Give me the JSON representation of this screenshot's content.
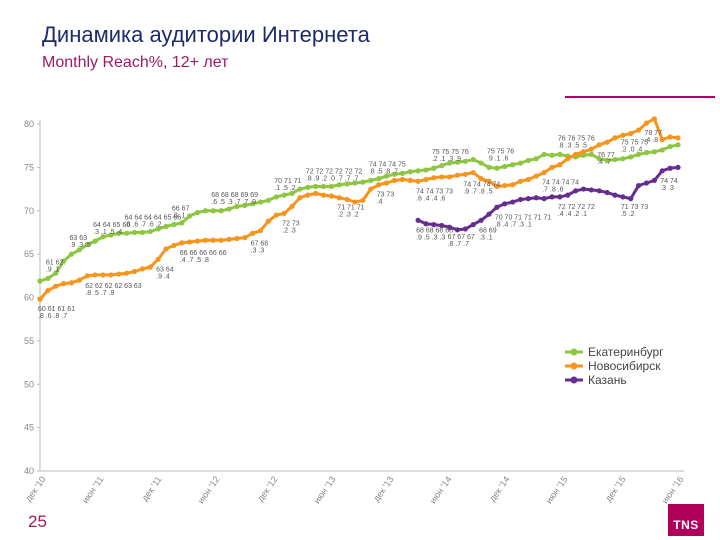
{
  "title": "Динамика аудитории Интернета",
  "subtitle": "Monthly Reach%, 12+ лет",
  "page_number": "25",
  "logo": "TNS",
  "chart_data": {
    "type": "line",
    "ylim": [
      40,
      80
    ],
    "y_ticks": [
      "40",
      "45",
      "50",
      "55",
      "60",
      "65",
      "70",
      "75",
      "80"
    ],
    "x_ticks": [
      "дек '10",
      "июн '11",
      "дек '11",
      "июн '12",
      "дек '12",
      "июн '13",
      "дек '13",
      "июн '14",
      "дек '14",
      "июн '15",
      "дек '15",
      "июн '16"
    ],
    "grid": false,
    "legend_position": "right",
    "series": [
      {
        "name": "Екатеринбург",
        "color": "#8dc63f",
        "start": 0,
        "values": [
          61.9,
          62.2,
          62.8,
          64.2,
          65.0,
          65.5,
          66.1,
          66.5,
          67.0,
          67.2,
          67.4,
          67.4,
          67.5,
          67.5,
          67.6,
          67.9,
          68.2,
          68.4,
          68.6,
          69.4,
          69.8,
          70.0,
          70.0,
          70.0,
          70.2,
          70.5,
          70.6,
          70.8,
          71.0,
          71.2,
          71.6,
          71.8,
          72.0,
          72.5,
          72.7,
          72.8,
          72.8,
          72.8,
          73.0,
          73.1,
          73.2,
          73.3,
          73.5,
          73.7,
          74.0,
          74.2,
          74.3,
          74.5,
          74.6,
          74.7,
          74.9,
          75.2,
          75.5,
          75.6,
          75.7,
          75.9,
          75.5,
          75.0,
          74.9,
          75.1,
          75.3,
          75.5,
          75.8,
          76.0,
          76.5,
          76.4,
          76.5,
          76.3,
          76.2,
          76.4,
          76.5,
          76.0,
          75.8,
          75.9,
          76.0,
          76.2,
          76.5,
          76.7,
          76.8,
          77.0,
          77.4,
          77.6
        ],
        "labels": [
          {
            "i": 1,
            "text": "61 62.\n.9 .1"
          },
          {
            "i": 4,
            "text": "63 63\n.9 .3 .5"
          },
          {
            "i": 7,
            "text": "64 64 65 66\n.3 .1 .5 .4"
          },
          {
            "i": 11,
            "text": "64 64 64 64 65 66\n.8 .6 .7 .6 .2"
          },
          {
            "i": 17,
            "text": "66 67\n.8 .1"
          },
          {
            "i": 22,
            "text": "68 68 68 69 69\n.6 .5 .3 .7 .7 .9"
          },
          {
            "i": 30,
            "text": "70 71 71\n.1 .5 .2"
          },
          {
            "i": 34,
            "text": "72 72 72 72 72 72\n.8 .9 .2 .0 .7 .7 .7"
          },
          {
            "i": 42,
            "text": "74 74 74 75\n.8 .5 .8 .7"
          },
          {
            "i": 50,
            "text": "75 75 75 76\n.2 .1 .3 .9"
          },
          {
            "i": 57,
            "text": "75 75 76\n.9 .1 .6"
          },
          {
            "i": 66,
            "text": "76 76 75 76\n.8 .3 .5 .5"
          },
          {
            "i": 74,
            "text": "75 75 75\n.2 .0 .4"
          }
        ]
      },
      {
        "name": "Новосибирск",
        "color": "#f7941d",
        "start": 0,
        "values": [
          59.8,
          60.8,
          61.3,
          61.6,
          61.7,
          62.0,
          62.5,
          62.6,
          62.6,
          62.6,
          62.7,
          62.8,
          63.0,
          63.3,
          63.5,
          64.4,
          65.6,
          66.0,
          66.3,
          66.4,
          66.5,
          66.6,
          66.6,
          66.6,
          66.7,
          66.8,
          66.9,
          67.4,
          67.7,
          68.8,
          69.5,
          69.7,
          70.5,
          71.5,
          71.8,
          72.0,
          71.8,
          71.7,
          71.5,
          71.3,
          71.0,
          71.2,
          72.5,
          73.0,
          73.2,
          73.5,
          73.6,
          73.5,
          73.4,
          73.6,
          73.8,
          73.9,
          73.9,
          74.1,
          74.2,
          74.4,
          73.7,
          73.4,
          72.8,
          72.9,
          73.0,
          73.4,
          73.6,
          74.0,
          74.4,
          75.0,
          75.3,
          76.0,
          76.5,
          76.8,
          77.1,
          77.6,
          77.9,
          78.4,
          78.7,
          78.9,
          79.3,
          80.1,
          80.6,
          78.2,
          78.5,
          78.4
        ],
        "labels": [
          {
            "i": 0,
            "text": "60 61 61 61\n.8 .6 .8 .7"
          },
          {
            "i": 6,
            "text": "62 62 62 62 63 63\n.8 .5 .7 .9"
          },
          {
            "i": 15,
            "text": "63 64\n.9 .4"
          },
          {
            "i": 18,
            "text": "66 66 66 66 66\n.4 .7 .5 .8"
          },
          {
            "i": 27,
            "text": "67 68\n.3 .3"
          },
          {
            "i": 31,
            "text": "72 73\n.2 .3"
          },
          {
            "i": 38,
            "text": "71 71 71\n.2 .3 .2"
          },
          {
            "i": 43,
            "text": "73 73\n.4"
          },
          {
            "i": 48,
            "text": "74 74 73 73\n.6 .4 .4 .6"
          },
          {
            "i": 54,
            "text": "74 74 74 74\n.9 .7 .8 .5"
          },
          {
            "i": 64,
            "text": "74 74 74 74\n.7 .8 .6"
          },
          {
            "i": 71,
            "text": "76 77\n.4 .7"
          },
          {
            "i": 77,
            "text": "78 77\n.4 .8"
          }
        ]
      },
      {
        "name": "Казань",
        "color": "#662d91",
        "start": 48,
        "values": [
          68.9,
          68.5,
          68.4,
          68.3,
          68.1,
          67.8,
          67.9,
          68.4,
          68.9,
          69.6,
          70.4,
          70.8,
          71.0,
          71.3,
          71.4,
          71.5,
          71.4,
          71.6,
          71.6,
          71.8,
          72.3,
          72.5,
          72.4,
          72.3,
          72.1,
          71.8,
          71.6,
          71.4,
          72.9,
          73.2,
          73.5,
          74.6,
          74.9,
          75.0
        ],
        "labels": [
          {
            "i": 48,
            "text": "68 68 68 68\n.9 .5 .3 .3"
          },
          {
            "i": 52,
            "text": "67 67 67\n.8 .7 .7"
          },
          {
            "i": 56,
            "text": "68 69\n.3 .1"
          },
          {
            "i": 58,
            "text": "70 70 71 71 71 71\n.8 .4 .7 .3 .1"
          },
          {
            "i": 66,
            "text": "72 72 72 72\n.4 .4 .2 .1"
          },
          {
            "i": 74,
            "text": "71 73 73\n.5 .2"
          },
          {
            "i": 79,
            "text": "74 74\n.3 .3"
          }
        ]
      }
    ]
  }
}
